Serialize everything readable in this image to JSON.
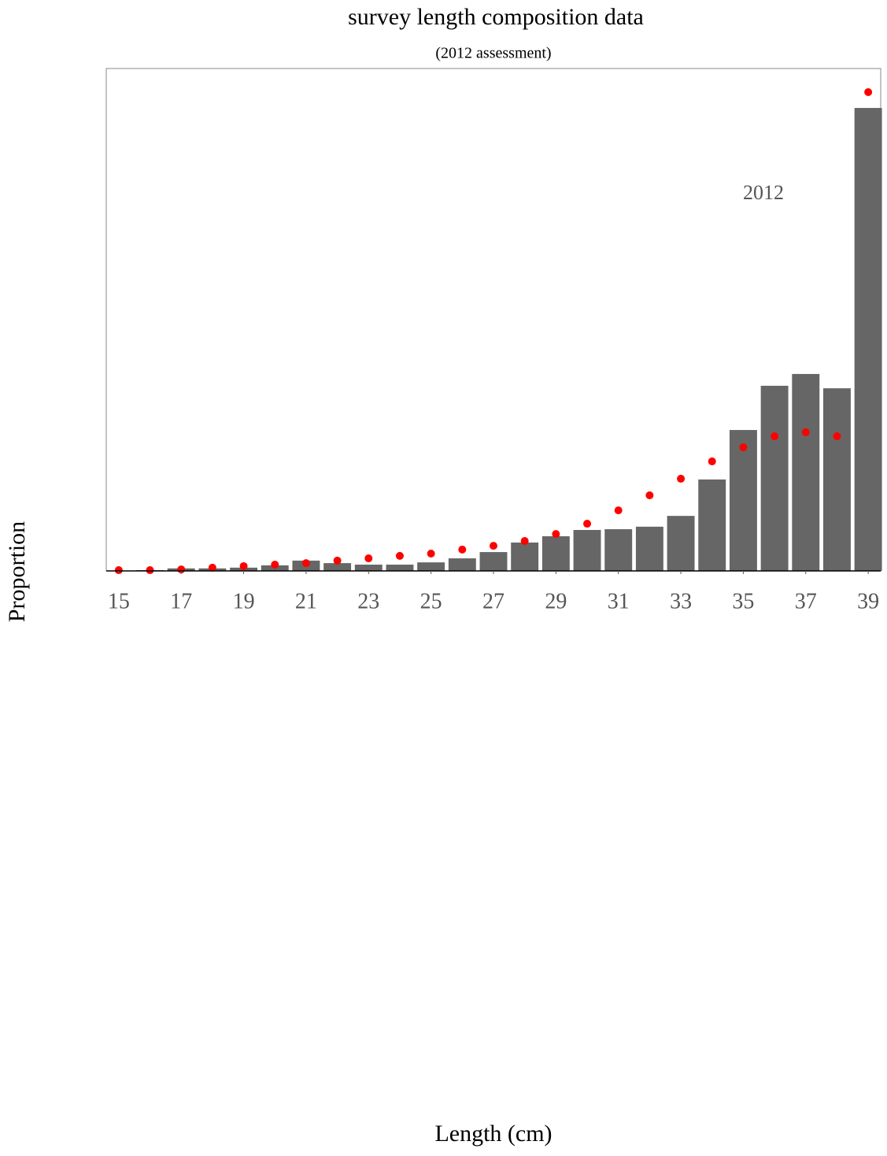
{
  "chart_data": {
    "type": "bar",
    "title": "survey length composition data",
    "subtitle": "(2012 assessment)",
    "x_label": "Length (cm)",
    "y_label": "Proportion",
    "annotation": "2012",
    "x": [
      15,
      16,
      17,
      18,
      19,
      20,
      21,
      22,
      23,
      24,
      25,
      26,
      27,
      28,
      29,
      30,
      31,
      32,
      33,
      34,
      35,
      36,
      37,
      38,
      39
    ],
    "xlim": [
      14.6,
      39.4
    ],
    "xticks": [
      15,
      17,
      19,
      21,
      23,
      25,
      27,
      29,
      31,
      33,
      35,
      37,
      39
    ],
    "ylim": [
      0,
      0.2
    ],
    "series": [
      {
        "type": "bar",
        "color": "#666666",
        "values": [
          0,
          0.0003,
          0.001,
          0.001,
          0.0013,
          0.0022,
          0.0041,
          0.0031,
          0.0025,
          0.0025,
          0.0034,
          0.005,
          0.0075,
          0.0113,
          0.0138,
          0.0163,
          0.0166,
          0.0176,
          0.0219,
          0.0364,
          0.0561,
          0.0737,
          0.0784,
          0.0727,
          0.1843
        ]
      },
      {
        "type": "scatter",
        "color": "#ff0000",
        "values": [
          0.0003,
          0.0003,
          0.0006,
          0.0013,
          0.0019,
          0.0025,
          0.0031,
          0.0041,
          0.005,
          0.006,
          0.0069,
          0.0085,
          0.01,
          0.0119,
          0.0147,
          0.0188,
          0.0241,
          0.0301,
          0.0367,
          0.0436,
          0.0492,
          0.0536,
          0.0552,
          0.0536,
          0.1906
        ]
      }
    ]
  }
}
